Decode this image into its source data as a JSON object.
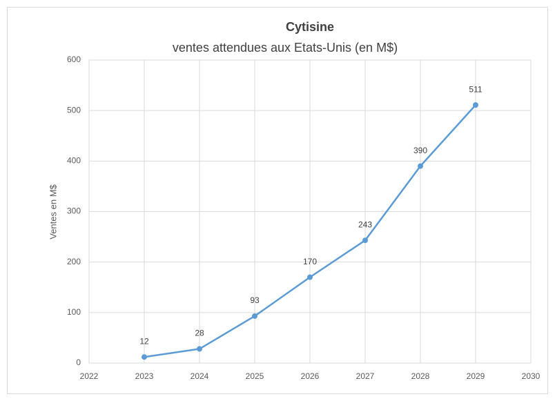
{
  "chart_data": {
    "type": "line",
    "title": "Cytisine",
    "subtitle": "ventes attendues aux Etats-Unis (en M$)",
    "y_label": "Ventes en M$",
    "x": [
      2023,
      2024,
      2025,
      2026,
      2027,
      2028,
      2029
    ],
    "series": [
      {
        "name": "Ventes",
        "color": "#5b9bd5",
        "values": [
          12,
          28,
          93,
          170,
          243,
          390,
          511
        ]
      }
    ],
    "xlim": [
      2022,
      2030
    ],
    "xticks": [
      2022,
      2023,
      2024,
      2025,
      2026,
      2027,
      2028,
      2029,
      2030
    ],
    "ylim": [
      0,
      600
    ],
    "yticks": [
      0,
      100,
      200,
      300,
      400,
      500,
      600
    ],
    "grid": true
  }
}
